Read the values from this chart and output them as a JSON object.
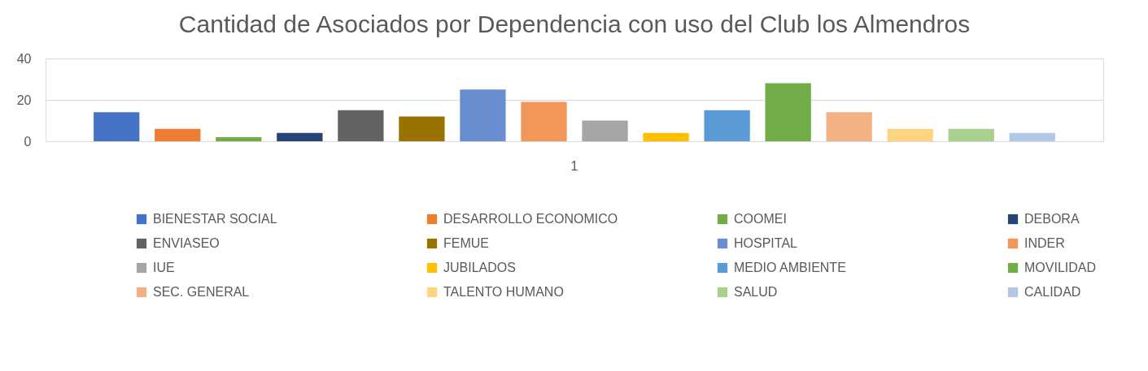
{
  "chart_data": {
    "type": "bar",
    "title": "Cantidad de Asociados por Dependencia con uso del Club los Almendros",
    "categories": [
      "1"
    ],
    "series": [
      {
        "name": "BIENESTAR SOCIAL",
        "color": "#4472c4",
        "values": [
          14
        ]
      },
      {
        "name": "DESARROLLO ECONOMICO",
        "color": "#ed7d31",
        "values": [
          6
        ]
      },
      {
        "name": "COOMEI",
        "color": "#70ad47",
        "values": [
          2
        ]
      },
      {
        "name": "DEBORA",
        "color": "#264478",
        "values": [
          4
        ]
      },
      {
        "name": "ENVIASEO",
        "color": "#636363",
        "values": [
          15
        ]
      },
      {
        "name": "FEMUE",
        "color": "#997300",
        "values": [
          12
        ]
      },
      {
        "name": "HOSPITAL",
        "color": "#698ed0",
        "values": [
          25
        ]
      },
      {
        "name": "INDER",
        "color": "#f1975a",
        "values": [
          19
        ]
      },
      {
        "name": "IUE",
        "color": "#a5a5a5",
        "values": [
          10
        ]
      },
      {
        "name": "JUBILADOS",
        "color": "#ffc000",
        "values": [
          4
        ]
      },
      {
        "name": "MEDIO AMBIENTE",
        "color": "#5b9bd5",
        "values": [
          15
        ]
      },
      {
        "name": "MOVILIDAD",
        "color": "#70ad47",
        "values": [
          28
        ]
      },
      {
        "name": "SEC. GENERAL",
        "color": "#f4b183",
        "values": [
          14
        ]
      },
      {
        "name": "TALENTO HUMANO",
        "color": "#ffd480",
        "values": [
          6
        ]
      },
      {
        "name": "SALUD",
        "color": "#a9d18e",
        "values": [
          6
        ]
      },
      {
        "name": "CALIDAD",
        "color": "#b4c7e7",
        "values": [
          4
        ]
      }
    ],
    "ylim": [
      0,
      40
    ],
    "yticks": [
      0,
      20,
      40
    ],
    "grid": "y",
    "legend": "bottom"
  }
}
